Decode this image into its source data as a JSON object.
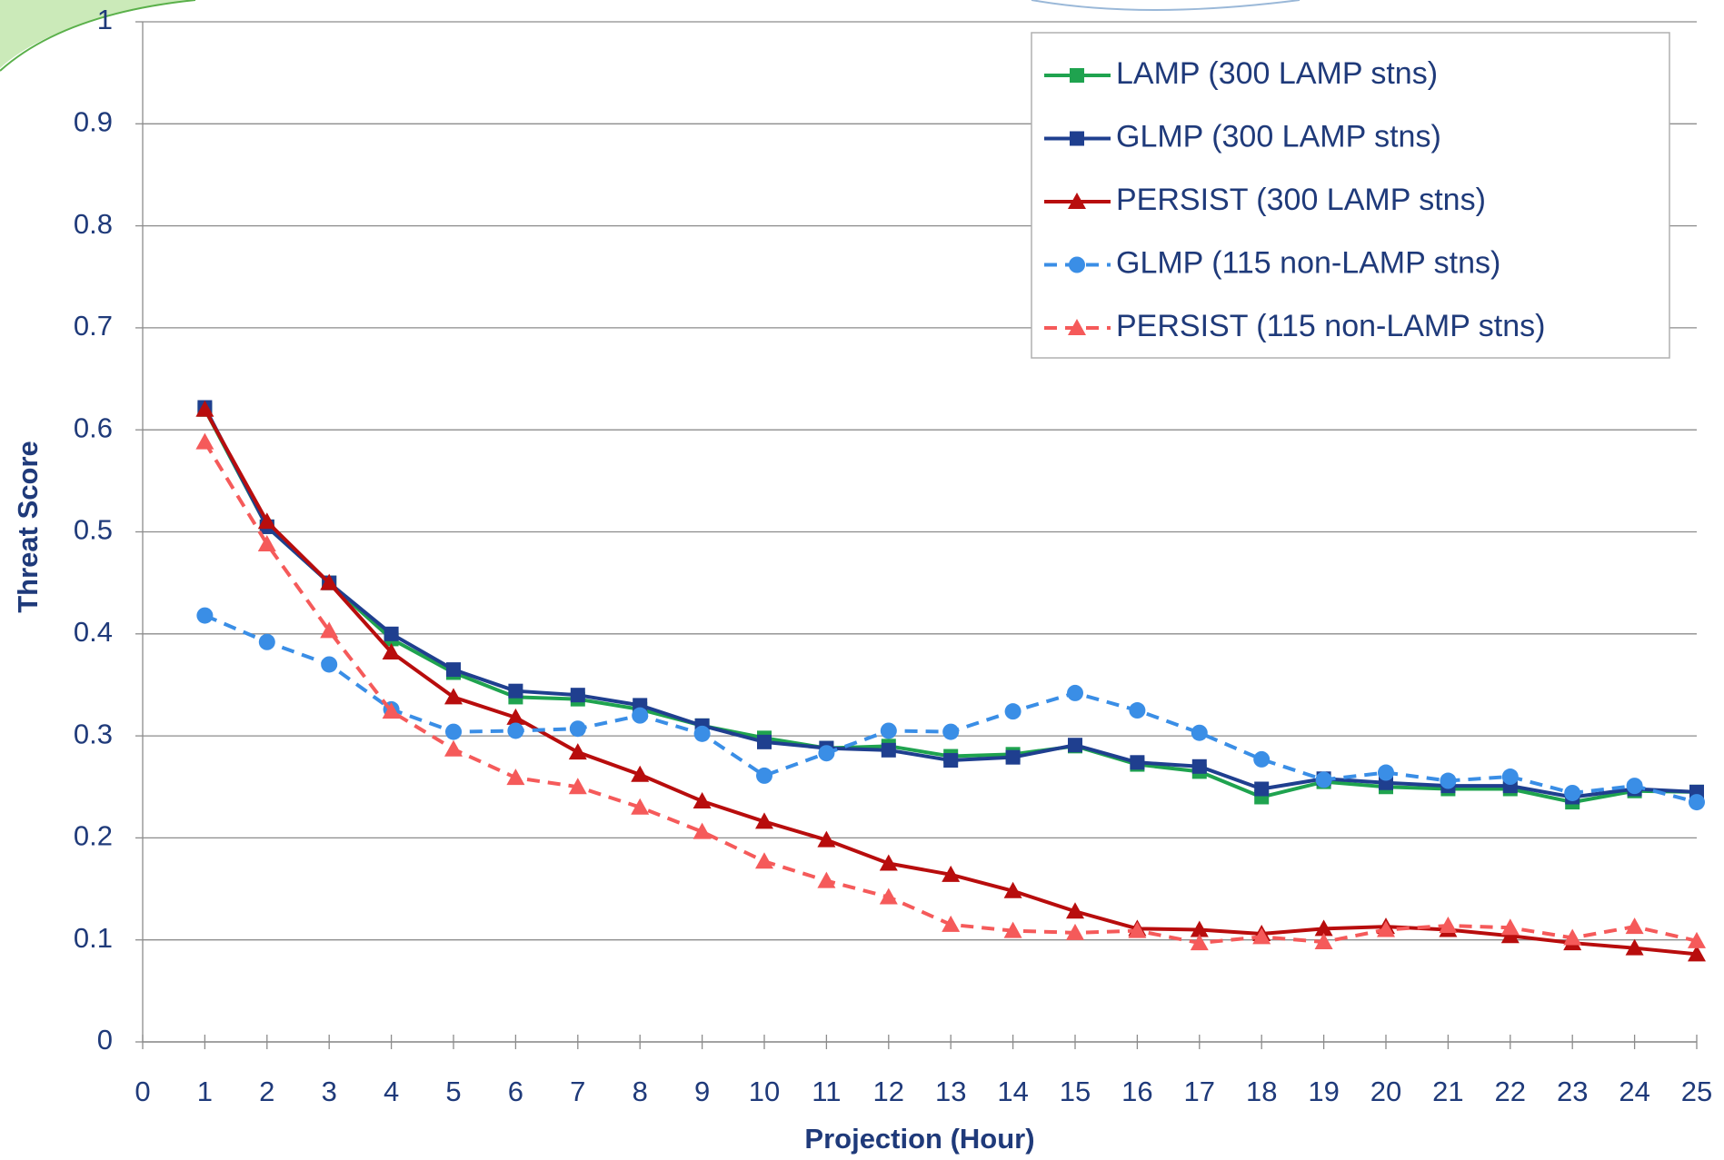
{
  "chart_data": {
    "type": "line",
    "x_label": "Projection (Hour)",
    "y_label": "Threat Score",
    "x": [
      1,
      2,
      3,
      4,
      5,
      6,
      7,
      8,
      9,
      10,
      11,
      12,
      13,
      14,
      15,
      16,
      17,
      18,
      19,
      20,
      21,
      22,
      23,
      24,
      25
    ],
    "xlim": [
      0,
      25
    ],
    "xticks": [
      0,
      1,
      2,
      3,
      4,
      5,
      6,
      7,
      8,
      9,
      10,
      11,
      12,
      13,
      14,
      15,
      16,
      17,
      18,
      19,
      20,
      21,
      22,
      23,
      24,
      25
    ],
    "ylim": [
      0,
      1
    ],
    "yticks": [
      0,
      0.1,
      0.2,
      0.3,
      0.4,
      0.5,
      0.6,
      0.7,
      0.8,
      0.9,
      1
    ],
    "grid": true,
    "legend": "top-right",
    "series": [
      {
        "name": "LAMP (300 LAMP stns)",
        "color": "#1fa34f",
        "marker": "square",
        "dash": false,
        "values": [
          0.62,
          0.505,
          0.45,
          0.395,
          0.362,
          0.338,
          0.336,
          0.326,
          0.31,
          0.298,
          0.288,
          0.29,
          0.28,
          0.282,
          0.29,
          0.272,
          0.265,
          0.24,
          0.255,
          0.25,
          0.248,
          0.248,
          0.235,
          0.246,
          0.245
        ]
      },
      {
        "name": "GLMP (300 LAMP stns)",
        "color": "#1f3f8f",
        "marker": "square",
        "dash": false,
        "values": [
          0.622,
          0.505,
          0.45,
          0.4,
          0.365,
          0.344,
          0.34,
          0.33,
          0.31,
          0.294,
          0.288,
          0.286,
          0.276,
          0.279,
          0.291,
          0.274,
          0.27,
          0.248,
          0.258,
          0.254,
          0.251,
          0.251,
          0.24,
          0.248,
          0.245
        ]
      },
      {
        "name": "PERSIST (300 LAMP stns)",
        "color": "#b80d0d",
        "marker": "triangle",
        "dash": false,
        "values": [
          0.62,
          0.51,
          0.45,
          0.382,
          0.338,
          0.318,
          0.284,
          0.262,
          0.236,
          0.216,
          0.198,
          0.175,
          0.164,
          0.148,
          0.128,
          0.111,
          0.11,
          0.106,
          0.111,
          0.113,
          0.11,
          0.104,
          0.097,
          0.092,
          0.086
        ]
      },
      {
        "name": "GLMP (115 non-LAMP stns)",
        "color": "#3a8ee6",
        "marker": "circle",
        "dash": true,
        "values": [
          0.418,
          0.392,
          0.37,
          0.326,
          0.304,
          0.305,
          0.307,
          0.32,
          0.302,
          0.261,
          0.283,
          0.305,
          0.304,
          0.324,
          0.342,
          0.325,
          0.303,
          0.277,
          0.257,
          0.264,
          0.256,
          0.26,
          0.244,
          0.251,
          0.235
        ]
      },
      {
        "name": "PERSIST (115 non-LAMP stns)",
        "color": "#f55a5a",
        "marker": "triangle",
        "dash": true,
        "values": [
          0.588,
          0.488,
          0.403,
          0.324,
          0.287,
          0.259,
          0.25,
          0.23,
          0.206,
          0.177,
          0.158,
          0.142,
          0.115,
          0.109,
          0.107,
          0.109,
          0.097,
          0.103,
          0.098,
          0.11,
          0.114,
          0.112,
          0.102,
          0.113,
          0.099
        ]
      }
    ]
  }
}
